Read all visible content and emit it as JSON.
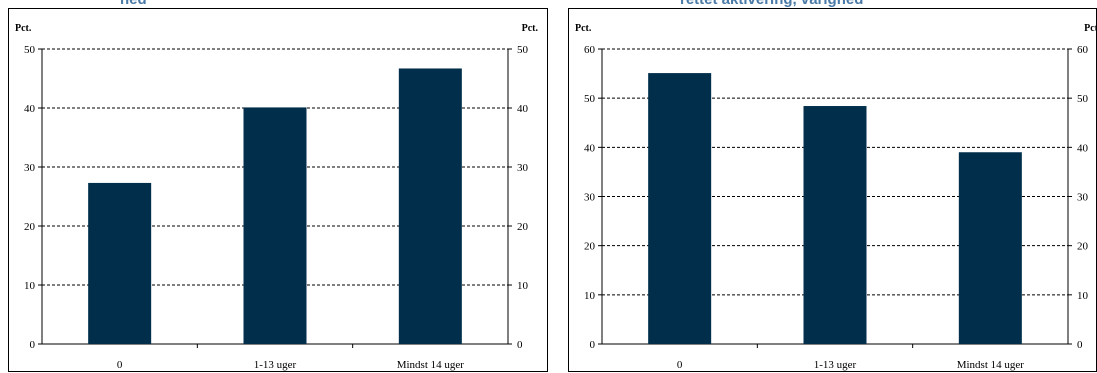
{
  "chart_data": [
    {
      "type": "bar",
      "title": "ned",
      "categories": [
        "0",
        "1-13 uger",
        "Mindst 14 uger"
      ],
      "values": [
        27.3,
        40.1,
        46.7
      ],
      "ylabel_left": "Pct.",
      "ylabel_right": "Pct.",
      "ylim": [
        0,
        50
      ],
      "yticks": [
        0,
        10,
        20,
        30,
        40,
        50
      ],
      "grid": true,
      "bar_color": "#002e4b"
    },
    {
      "type": "bar",
      "title": "rettet aktivering, varighed",
      "categories": [
        "0",
        "1-13 uger",
        "Mindst 14 uger"
      ],
      "values": [
        55.1,
        48.4,
        39.0
      ],
      "ylabel_left": "Pct.",
      "ylabel_right": "Pct",
      "ylim": [
        0,
        60
      ],
      "yticks": [
        0,
        10,
        20,
        30,
        40,
        50,
        60
      ],
      "grid": true,
      "bar_color": "#002e4b"
    }
  ]
}
